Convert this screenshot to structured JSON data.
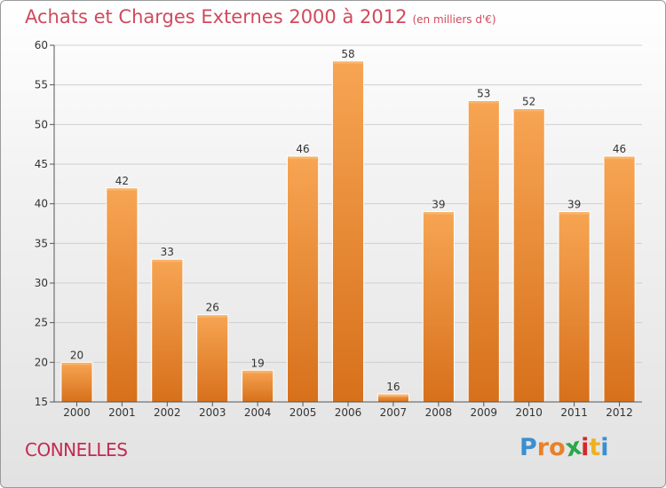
{
  "chart_data": {
    "type": "bar",
    "title": "Achats et Charges Externes 2000 à 2012",
    "subtitle": "(en milliers d'€)",
    "categories": [
      "2000",
      "2001",
      "2002",
      "2003",
      "2004",
      "2005",
      "2006",
      "2007",
      "2008",
      "2009",
      "2010",
      "2011",
      "2012"
    ],
    "values": [
      20,
      42,
      33,
      26,
      19,
      46,
      58,
      16,
      39,
      53,
      52,
      39,
      46
    ],
    "ylim": [
      15,
      60
    ],
    "yticks": [
      15,
      20,
      25,
      30,
      35,
      40,
      45,
      50,
      55,
      60
    ],
    "grid": true,
    "bar_color": "#f0922e"
  },
  "footer": {
    "commune": "CONNELLES",
    "logo_letters": [
      "P",
      "r",
      "o",
      "x",
      "i",
      "t",
      "i"
    ],
    "logo_colors": [
      "#3a8fd0",
      "#e8812a",
      "#e8812a",
      "#2aa84a",
      "#d22a2a",
      "#f0b020",
      "#3a8fd0"
    ]
  }
}
